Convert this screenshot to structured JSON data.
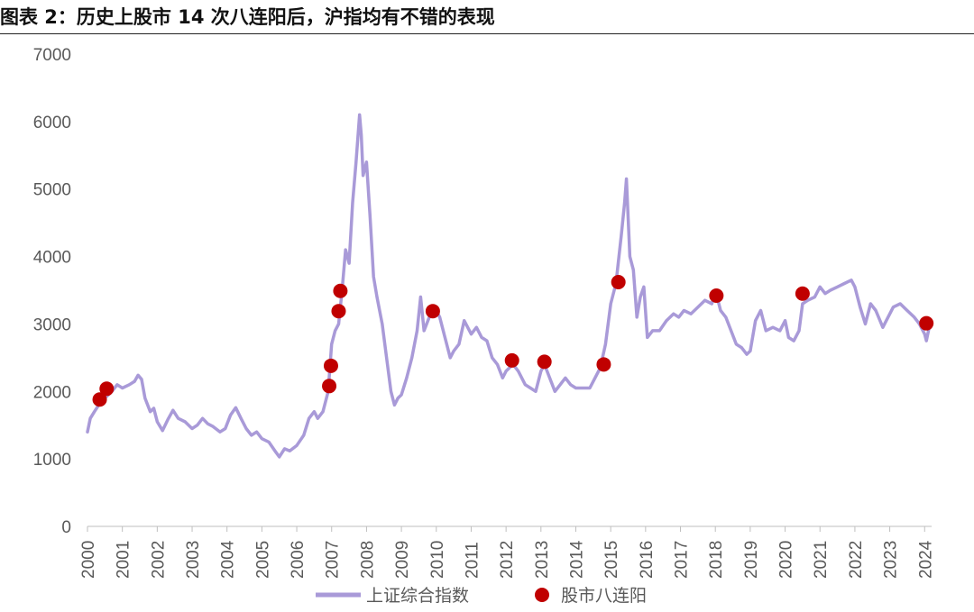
{
  "title": "图表 2：历史上股市 14 次八连阳后，沪指均有不错的表现",
  "chart_data": {
    "type": "line",
    "xlim": [
      2000,
      2024.2
    ],
    "ylim": [
      0,
      7000
    ],
    "yticks": [
      0,
      1000,
      2000,
      3000,
      4000,
      5000,
      6000,
      7000
    ],
    "xtick_labels": [
      "2000",
      "2001",
      "2002",
      "2003",
      "2004",
      "2005",
      "2006",
      "2007",
      "2008",
      "2009",
      "2010",
      "2011",
      "2012",
      "2013",
      "2014",
      "2015",
      "2016",
      "2017",
      "2018",
      "2019",
      "2020",
      "2021",
      "2022",
      "2023",
      "2024"
    ],
    "grid": false,
    "legend_position": "bottom",
    "series": [
      {
        "name": "上证综合指数",
        "kind": "line",
        "color": "#a99ad8",
        "points": [
          [
            2000.0,
            1400
          ],
          [
            2000.08,
            1600
          ],
          [
            2000.2,
            1700
          ],
          [
            2000.35,
            1820
          ],
          [
            2000.5,
            1900
          ],
          [
            2000.7,
            2000
          ],
          [
            2000.85,
            2100
          ],
          [
            2001.0,
            2050
          ],
          [
            2001.2,
            2100
          ],
          [
            2001.35,
            2150
          ],
          [
            2001.45,
            2240
          ],
          [
            2001.55,
            2180
          ],
          [
            2001.65,
            1900
          ],
          [
            2001.8,
            1700
          ],
          [
            2001.9,
            1750
          ],
          [
            2002.0,
            1550
          ],
          [
            2002.15,
            1420
          ],
          [
            2002.3,
            1580
          ],
          [
            2002.45,
            1720
          ],
          [
            2002.6,
            1600
          ],
          [
            2002.8,
            1550
          ],
          [
            2003.0,
            1450
          ],
          [
            2003.15,
            1500
          ],
          [
            2003.3,
            1600
          ],
          [
            2003.45,
            1520
          ],
          [
            2003.6,
            1480
          ],
          [
            2003.8,
            1400
          ],
          [
            2003.95,
            1450
          ],
          [
            2004.1,
            1650
          ],
          [
            2004.25,
            1760
          ],
          [
            2004.4,
            1600
          ],
          [
            2004.55,
            1450
          ],
          [
            2004.7,
            1350
          ],
          [
            2004.85,
            1400
          ],
          [
            2005.0,
            1300
          ],
          [
            2005.2,
            1250
          ],
          [
            2005.4,
            1100
          ],
          [
            2005.5,
            1030
          ],
          [
            2005.65,
            1150
          ],
          [
            2005.8,
            1120
          ],
          [
            2006.0,
            1200
          ],
          [
            2006.2,
            1350
          ],
          [
            2006.35,
            1600
          ],
          [
            2006.5,
            1700
          ],
          [
            2006.6,
            1600
          ],
          [
            2006.75,
            1700
          ],
          [
            2006.9,
            2000
          ],
          [
            2007.0,
            2700
          ],
          [
            2007.1,
            2900
          ],
          [
            2007.2,
            3000
          ],
          [
            2007.3,
            3500
          ],
          [
            2007.4,
            4100
          ],
          [
            2007.5,
            3900
          ],
          [
            2007.6,
            4800
          ],
          [
            2007.7,
            5400
          ],
          [
            2007.8,
            6100
          ],
          [
            2007.85,
            5800
          ],
          [
            2007.9,
            5200
          ],
          [
            2008.0,
            5400
          ],
          [
            2008.1,
            4600
          ],
          [
            2008.2,
            3700
          ],
          [
            2008.3,
            3400
          ],
          [
            2008.45,
            3000
          ],
          [
            2008.6,
            2400
          ],
          [
            2008.7,
            2000
          ],
          [
            2008.8,
            1800
          ],
          [
            2008.9,
            1900
          ],
          [
            2009.0,
            1950
          ],
          [
            2009.15,
            2200
          ],
          [
            2009.3,
            2500
          ],
          [
            2009.45,
            2900
          ],
          [
            2009.55,
            3400
          ],
          [
            2009.65,
            2900
          ],
          [
            2009.8,
            3100
          ],
          [
            2009.95,
            3250
          ],
          [
            2010.1,
            3100
          ],
          [
            2010.25,
            2800
          ],
          [
            2010.4,
            2500
          ],
          [
            2010.5,
            2600
          ],
          [
            2010.65,
            2700
          ],
          [
            2010.8,
            3050
          ],
          [
            2010.9,
            2950
          ],
          [
            2011.0,
            2850
          ],
          [
            2011.15,
            2950
          ],
          [
            2011.3,
            2800
          ],
          [
            2011.45,
            2750
          ],
          [
            2011.6,
            2500
          ],
          [
            2011.75,
            2400
          ],
          [
            2011.9,
            2200
          ],
          [
            2012.0,
            2300
          ],
          [
            2012.2,
            2400
          ],
          [
            2012.35,
            2300
          ],
          [
            2012.55,
            2100
          ],
          [
            2012.7,
            2050
          ],
          [
            2012.85,
            2000
          ],
          [
            2013.0,
            2300
          ],
          [
            2013.1,
            2400
          ],
          [
            2013.25,
            2200
          ],
          [
            2013.4,
            2000
          ],
          [
            2013.55,
            2100
          ],
          [
            2013.7,
            2200
          ],
          [
            2013.85,
            2100
          ],
          [
            2014.0,
            2050
          ],
          [
            2014.2,
            2050
          ],
          [
            2014.4,
            2050
          ],
          [
            2014.55,
            2200
          ],
          [
            2014.7,
            2350
          ],
          [
            2014.85,
            2700
          ],
          [
            2015.0,
            3300
          ],
          [
            2015.15,
            3600
          ],
          [
            2015.3,
            4300
          ],
          [
            2015.4,
            4800
          ],
          [
            2015.45,
            5150
          ],
          [
            2015.55,
            4000
          ],
          [
            2015.65,
            3800
          ],
          [
            2015.75,
            3100
          ],
          [
            2015.85,
            3400
          ],
          [
            2015.95,
            3550
          ],
          [
            2016.05,
            2800
          ],
          [
            2016.2,
            2900
          ],
          [
            2016.4,
            2900
          ],
          [
            2016.6,
            3050
          ],
          [
            2016.8,
            3150
          ],
          [
            2016.95,
            3100
          ],
          [
            2017.1,
            3200
          ],
          [
            2017.3,
            3150
          ],
          [
            2017.5,
            3250
          ],
          [
            2017.7,
            3350
          ],
          [
            2017.9,
            3300
          ],
          [
            2018.0,
            3500
          ],
          [
            2018.15,
            3200
          ],
          [
            2018.3,
            3100
          ],
          [
            2018.45,
            2900
          ],
          [
            2018.6,
            2700
          ],
          [
            2018.75,
            2650
          ],
          [
            2018.9,
            2550
          ],
          [
            2019.0,
            2600
          ],
          [
            2019.15,
            3050
          ],
          [
            2019.3,
            3200
          ],
          [
            2019.45,
            2900
          ],
          [
            2019.65,
            2950
          ],
          [
            2019.85,
            2900
          ],
          [
            2020.0,
            3050
          ],
          [
            2020.1,
            2800
          ],
          [
            2020.25,
            2750
          ],
          [
            2020.4,
            2900
          ],
          [
            2020.5,
            3300
          ],
          [
            2020.65,
            3350
          ],
          [
            2020.85,
            3400
          ],
          [
            2021.0,
            3550
          ],
          [
            2021.15,
            3450
          ],
          [
            2021.3,
            3500
          ],
          [
            2021.5,
            3550
          ],
          [
            2021.7,
            3600
          ],
          [
            2021.9,
            3650
          ],
          [
            2022.0,
            3550
          ],
          [
            2022.15,
            3250
          ],
          [
            2022.3,
            3000
          ],
          [
            2022.45,
            3300
          ],
          [
            2022.6,
            3200
          ],
          [
            2022.8,
            2950
          ],
          [
            2022.95,
            3100
          ],
          [
            2023.1,
            3250
          ],
          [
            2023.3,
            3300
          ],
          [
            2023.5,
            3200
          ],
          [
            2023.7,
            3100
          ],
          [
            2023.85,
            3000
          ],
          [
            2024.0,
            2850
          ],
          [
            2024.05,
            2750
          ],
          [
            2024.15,
            3000
          ]
        ]
      },
      {
        "name": "股市八连阳",
        "kind": "scatter",
        "color": "#c00000",
        "points": [
          [
            2000.35,
            1880
          ],
          [
            2000.55,
            2040
          ],
          [
            2006.93,
            2080
          ],
          [
            2006.98,
            2380
          ],
          [
            2007.2,
            3190
          ],
          [
            2007.25,
            3490
          ],
          [
            2009.9,
            3190
          ],
          [
            2012.17,
            2460
          ],
          [
            2013.1,
            2440
          ],
          [
            2014.8,
            2400
          ],
          [
            2015.22,
            3620
          ],
          [
            2018.03,
            3420
          ],
          [
            2020.5,
            3450
          ],
          [
            2024.05,
            3010
          ]
        ]
      }
    ]
  }
}
